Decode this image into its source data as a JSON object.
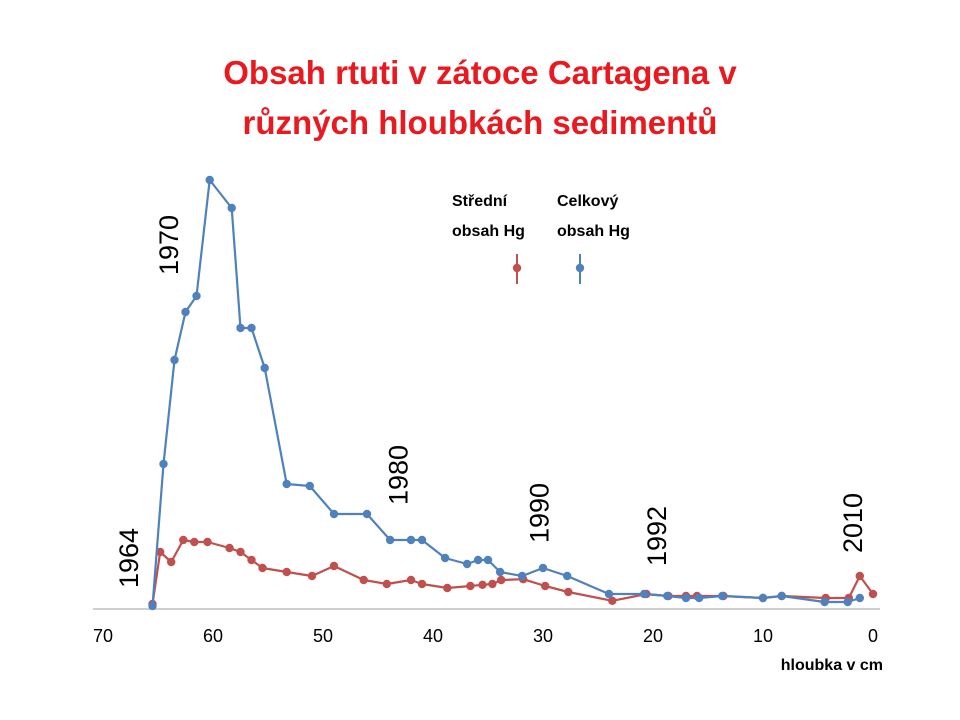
{
  "chart_data": {
    "type": "line",
    "title_lines": [
      "Obsah rtuti v zátoce Cartagena v",
      "různých hloubkách sedimentů"
    ],
    "xlabel": "hloubka v cm",
    "xlim": [
      70,
      0
    ],
    "ylim": [
      0,
      100
    ],
    "x_ticks": [
      70,
      60,
      50,
      40,
      30,
      20,
      10,
      0
    ],
    "grid": false,
    "legend_position": "top-center",
    "series": [
      {
        "name_lines": [
          "Střední",
          "obsah Hg"
        ],
        "color": "#c0504d",
        "points": [
          [
            65.5,
            1
          ],
          [
            64.8,
            14
          ],
          [
            63.8,
            11.5
          ],
          [
            62.7,
            17
          ],
          [
            61.7,
            16.5
          ],
          [
            60.5,
            16.5
          ],
          [
            58.5,
            15
          ],
          [
            57.5,
            14
          ],
          [
            56.5,
            12
          ],
          [
            55.5,
            10
          ],
          [
            53.3,
            9
          ],
          [
            51,
            8
          ],
          [
            49,
            10.5
          ],
          [
            46.3,
            7
          ],
          [
            44.2,
            6
          ],
          [
            42,
            7
          ],
          [
            41,
            6
          ],
          [
            38.7,
            5
          ],
          [
            36.6,
            5.5
          ],
          [
            35.5,
            5.8
          ],
          [
            34.6,
            6
          ],
          [
            33.8,
            7
          ],
          [
            31.8,
            7.2
          ],
          [
            29.8,
            5.5
          ],
          [
            27.7,
            4
          ],
          [
            23.7,
            1.8
          ],
          [
            20.6,
            3.5
          ],
          [
            18.6,
            3
          ],
          [
            17,
            3
          ],
          [
            16,
            3
          ],
          [
            13.6,
            3
          ],
          [
            10,
            2.5
          ],
          [
            8.3,
            3
          ],
          [
            4.3,
            2.5
          ],
          [
            2.2,
            2.5
          ],
          [
            1.2,
            8
          ],
          [
            0,
            3.5
          ]
        ]
      },
      {
        "name_lines": [
          "Celkový",
          "obsah Hg"
        ],
        "color": "#4f81bd",
        "points": [
          [
            65.5,
            0.5
          ],
          [
            64.5,
            36
          ],
          [
            63.5,
            62
          ],
          [
            62.5,
            74
          ],
          [
            61.5,
            78
          ],
          [
            60.3,
            107
          ],
          [
            58.3,
            100
          ],
          [
            57.5,
            70
          ],
          [
            56.5,
            70
          ],
          [
            55.3,
            60
          ],
          [
            53.3,
            31
          ],
          [
            51.2,
            30.5
          ],
          [
            49,
            23.5
          ],
          [
            46,
            23.5
          ],
          [
            43.9,
            17
          ],
          [
            42,
            17
          ],
          [
            41,
            17
          ],
          [
            38.9,
            12.5
          ],
          [
            36.9,
            11
          ],
          [
            35.9,
            12
          ],
          [
            35,
            12
          ],
          [
            33.9,
            9
          ],
          [
            31.9,
            8
          ],
          [
            30,
            10
          ],
          [
            27.8,
            8
          ],
          [
            24,
            3.5
          ],
          [
            20.8,
            3.5
          ],
          [
            18.7,
            3
          ],
          [
            17,
            2.5
          ],
          [
            15.8,
            2.5
          ],
          [
            13.7,
            3
          ],
          [
            10,
            2.5
          ],
          [
            8.3,
            3
          ],
          [
            4.4,
            1.5
          ],
          [
            2.3,
            1.5
          ],
          [
            1.2,
            2.5
          ]
        ]
      }
    ],
    "annotations": [
      {
        "text": "1964",
        "x": 66.8
      },
      {
        "text": "1970",
        "x": 63.2
      },
      {
        "text": "1980",
        "x": 42.3
      },
      {
        "text": "1990",
        "x": 29.5
      },
      {
        "text": "1992",
        "x": 18.8
      },
      {
        "text": "2010",
        "x": 1.0
      }
    ]
  }
}
